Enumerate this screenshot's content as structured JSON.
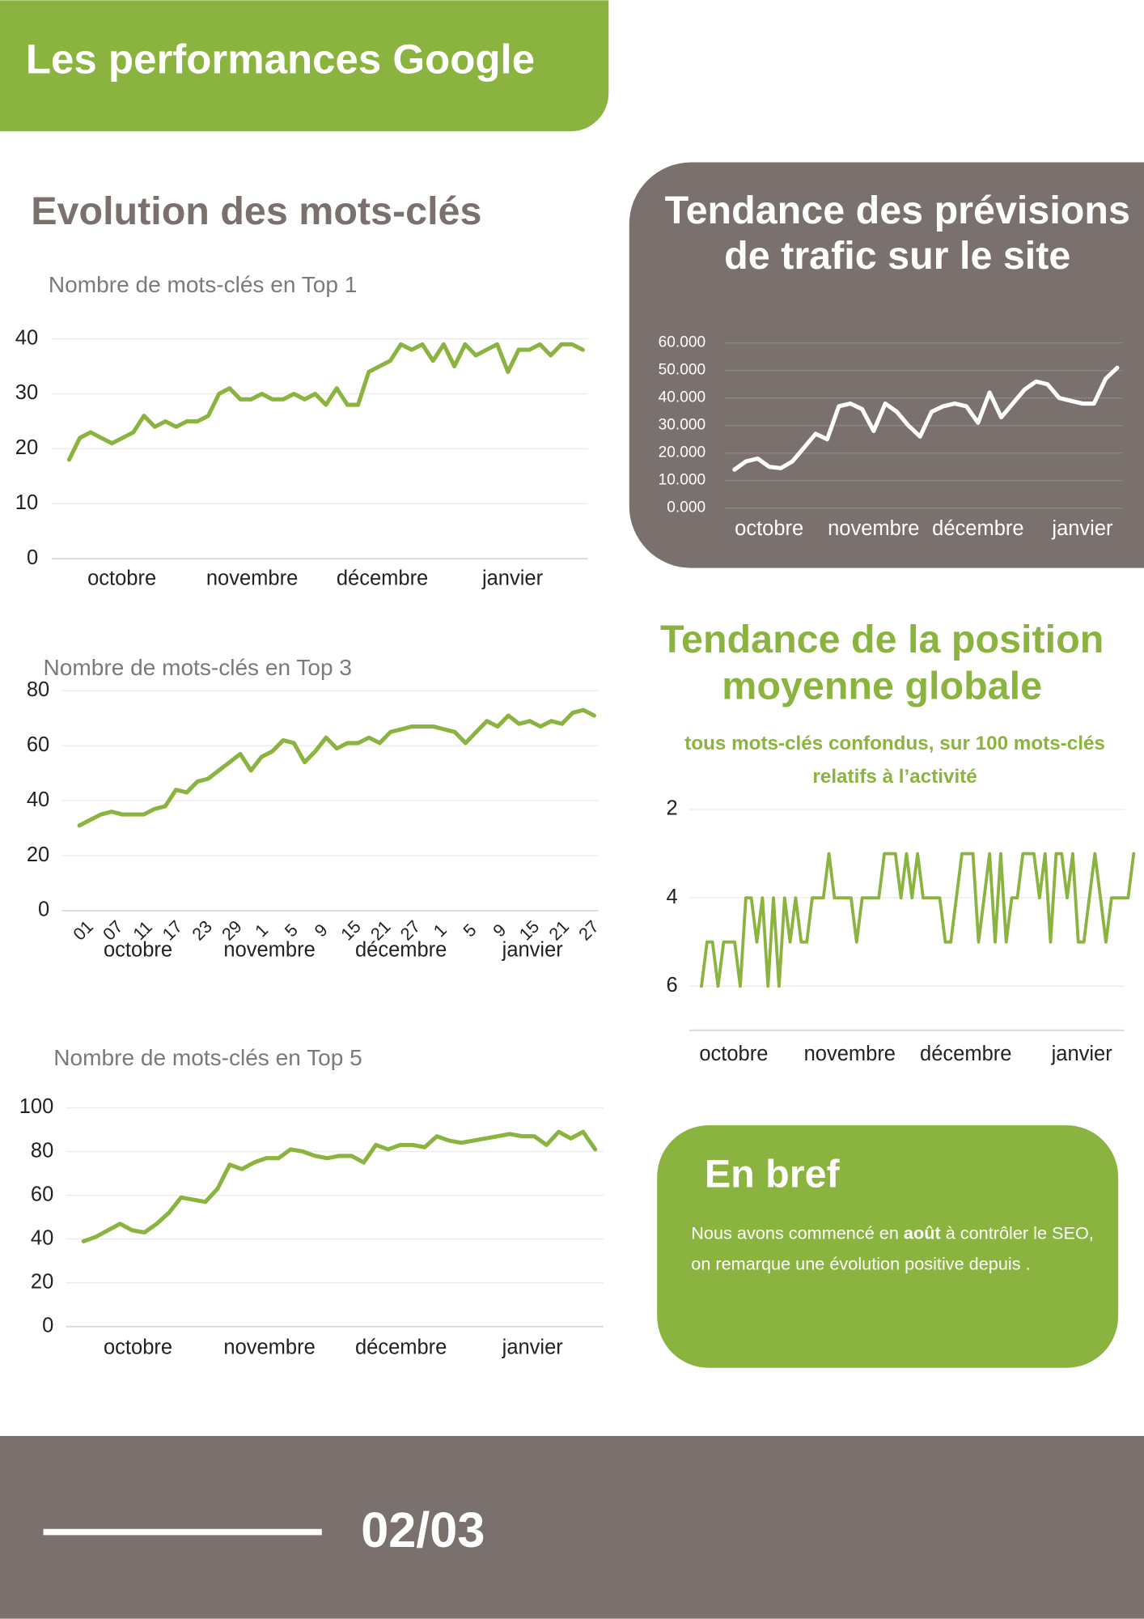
{
  "header": {
    "title": "Les performances Google"
  },
  "section_title": "Evolution des mots-clés",
  "chart_data": [
    {
      "type": "line",
      "title": "Nombre de mots-clés en Top 1",
      "months": [
        "octobre",
        "novembre",
        "décembre",
        "janvier"
      ],
      "values": [
        18,
        22,
        23,
        22,
        21,
        22,
        23,
        26,
        24,
        25,
        24,
        25,
        25,
        26,
        30,
        31,
        29,
        29,
        30,
        29,
        29,
        30,
        29,
        30,
        28,
        31,
        28,
        28,
        34,
        35,
        36,
        39,
        38,
        39,
        36,
        39,
        35,
        39,
        37,
        38,
        39,
        34,
        38,
        38,
        39,
        37,
        39,
        39,
        38
      ],
      "color": "#8ab43f",
      "ylim": [
        0,
        40
      ],
      "yticks": [
        0,
        10,
        20,
        30,
        40
      ],
      "grid": true
    },
    {
      "type": "line",
      "title": "Tendance des prévisions de trafic sur le site",
      "months": [
        "octobre",
        "novembre",
        "décembre",
        "janvier"
      ],
      "values": [
        14000,
        17000,
        18000,
        15000,
        14500,
        17000,
        22000,
        27000,
        25000,
        37000,
        38000,
        36000,
        28000,
        38000,
        35000,
        30000,
        26000,
        35000,
        37000,
        38000,
        37000,
        31000,
        42000,
        33000,
        38000,
        43000,
        46000,
        45000,
        40000,
        39000,
        38000,
        38000,
        47000,
        51000
      ],
      "color": "#ffffff",
      "ylim": [
        0,
        60000
      ],
      "yticks": [
        {
          "value": 0,
          "label": "0.000"
        },
        {
          "value": 10000,
          "label": "10.000"
        },
        {
          "value": 20000,
          "label": "20.000"
        },
        {
          "value": 30000,
          "label": "30.000"
        },
        {
          "value": 40000,
          "label": "40.000"
        },
        {
          "value": 50000,
          "label": "50.000"
        },
        {
          "value": 60000,
          "label": "60.000"
        }
      ],
      "grid": true
    },
    {
      "type": "line",
      "title": "Nombre de mots-clés en Top 3",
      "months": [
        "octobre",
        "novembre",
        "décembre",
        "janvier"
      ],
      "days": [
        "01",
        "07",
        "11",
        "17",
        "23",
        "29",
        "1",
        "5",
        "9",
        "15",
        "21",
        "27",
        "1",
        "5",
        "9",
        "15",
        "21",
        "27"
      ],
      "values": [
        31,
        33,
        35,
        36,
        35,
        35,
        35,
        37,
        38,
        44,
        43,
        47,
        48,
        51,
        54,
        57,
        51,
        56,
        58,
        62,
        61,
        54,
        58,
        63,
        59,
        61,
        61,
        63,
        61,
        65,
        66,
        67,
        67,
        67,
        66,
        65,
        61,
        65,
        69,
        67,
        71,
        68,
        69,
        67,
        69,
        68,
        72,
        73,
        71
      ],
      "color": "#8ab43f",
      "ylim": [
        0,
        80
      ],
      "yticks": [
        0,
        20,
        40,
        60,
        80
      ],
      "grid": true
    },
    {
      "type": "line",
      "title": "Tendance de la position moyenne globale",
      "subtitle": "tous mots-clés confondus, sur 100 mots-clés relatifs à l’activité",
      "months": [
        "octobre",
        "novembre",
        "décembre",
        "janvier"
      ],
      "values": [
        6,
        5,
        5,
        6,
        5,
        5,
        5,
        6,
        4,
        4,
        5,
        4,
        6,
        4,
        6,
        4,
        5,
        4,
        5,
        5,
        4,
        4,
        4,
        3,
        4,
        4,
        4,
        4,
        5,
        4,
        4,
        4,
        4,
        3,
        3,
        3,
        4,
        3,
        4,
        3,
        4,
        4,
        4,
        4,
        5,
        5,
        4,
        3,
        3,
        3,
        5,
        4,
        3,
        5,
        3,
        5,
        4,
        4,
        3,
        3,
        3,
        4,
        3,
        5,
        3,
        3,
        4,
        3,
        5,
        5,
        4,
        3,
        4,
        5,
        4,
        4,
        4,
        4,
        3
      ],
      "color": "#8ab43f",
      "ylim": [
        7,
        2
      ],
      "yticks": [
        2,
        4,
        6
      ],
      "grid": true
    },
    {
      "type": "line",
      "title": "Nombre de mots-clés en Top 5",
      "months": [
        "octobre",
        "novembre",
        "décembre",
        "janvier"
      ],
      "values": [
        39,
        41,
        44,
        47,
        44,
        43,
        47,
        52,
        59,
        58,
        57,
        63,
        74,
        72,
        75,
        77,
        77,
        81,
        80,
        78,
        77,
        78,
        78,
        75,
        83,
        81,
        83,
        83,
        82,
        87,
        85,
        84,
        85,
        86,
        87,
        88,
        87,
        87,
        83,
        89,
        86,
        89,
        81
      ],
      "color": "#8ab43f",
      "ylim": [
        0,
        100
      ],
      "yticks": [
        0,
        20,
        40,
        60,
        80,
        100
      ],
      "grid": true
    }
  ],
  "summary": {
    "title": "En bref",
    "text": [
      "Nous avons commencé en ",
      "août",
      " à contrôler le SEO, on remarque une évolution  positive depuis ."
    ]
  },
  "footer": {
    "page": "02/03"
  }
}
